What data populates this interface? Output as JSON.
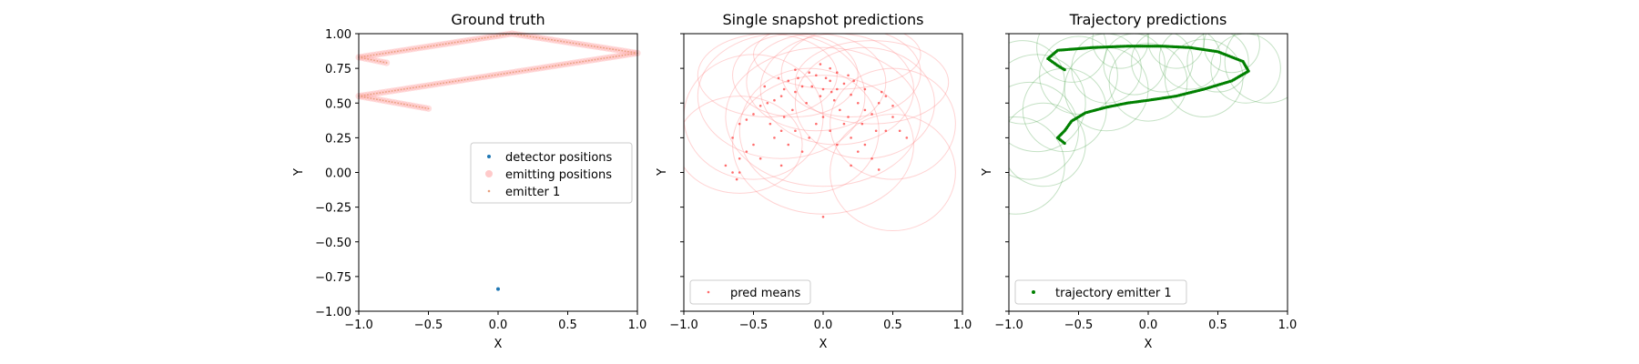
{
  "chart_data": [
    {
      "type": "scatter",
      "title": "Ground truth",
      "xlabel": "X",
      "ylabel": "Y",
      "xlim": [
        -1.0,
        1.0
      ],
      "ylim": [
        -1.0,
        1.0
      ],
      "xticks": [
        "−1.0",
        "−0.5",
        "0.0",
        "0.5",
        "1.0"
      ],
      "yticks": [
        "−1.00",
        "−0.75",
        "−0.50",
        "−0.25",
        "0.00",
        "0.25",
        "0.50",
        "0.75",
        "1.00"
      ],
      "show_ytick_labels": true,
      "grid": false,
      "legend_position": "center-right",
      "legend": [
        {
          "label": "detector positions",
          "color": "#1f77b4",
          "marker": "dot"
        },
        {
          "label": "emitting positions",
          "color": "#ffb3b3",
          "marker": "big-dot"
        },
        {
          "label": "emitter 1",
          "color": "#e8a07e",
          "marker": "small-dot"
        }
      ],
      "series": [
        {
          "name": "detector positions",
          "color": "#1f77b4",
          "points": [
            [
              0.0,
              -0.84
            ]
          ]
        },
        {
          "name": "emitter 1",
          "color": "#e8a07e",
          "polyline": [
            [
              -0.8,
              0.79
            ],
            [
              -1.0,
              0.83
            ],
            [
              0.1,
              1.0
            ],
            [
              1.0,
              0.86
            ],
            [
              -1.0,
              0.55
            ],
            [
              -0.5,
              0.46
            ]
          ],
          "step": 0.022
        }
      ]
    },
    {
      "type": "scatter",
      "title": "Single snapshot predictions",
      "xlabel": "X",
      "ylabel": "Y",
      "xlim": [
        -1.0,
        1.0
      ],
      "ylim": [
        -1.0,
        1.0
      ],
      "xticks": [
        "−1.0",
        "−0.5",
        "0.0",
        "0.5",
        "1.0"
      ],
      "show_ytick_labels": false,
      "grid": false,
      "legend_position": "bottom-left",
      "legend": [
        {
          "label": "pred means",
          "color": "#ff6b6b",
          "marker": "small-dot"
        }
      ],
      "series": [
        {
          "name": "pred means",
          "color": "#ff3b3b",
          "points": [
            [
              -0.05,
              0.7
            ],
            [
              0.02,
              0.68
            ],
            [
              -0.1,
              0.72
            ],
            [
              0.05,
              0.66
            ],
            [
              -0.15,
              0.62
            ],
            [
              0.1,
              0.6
            ],
            [
              -0.2,
              0.58
            ],
            [
              0.15,
              0.64
            ],
            [
              -0.25,
              0.66
            ],
            [
              0.2,
              0.56
            ],
            [
              -0.3,
              0.55
            ],
            [
              0.25,
              0.5
            ],
            [
              -0.35,
              0.52
            ],
            [
              0.3,
              0.45
            ],
            [
              -0.4,
              0.5
            ],
            [
              0.35,
              0.42
            ],
            [
              -0.45,
              0.48
            ],
            [
              0.4,
              0.5
            ],
            [
              -0.5,
              0.42
            ],
            [
              0.45,
              0.55
            ],
            [
              -0.55,
              0.38
            ],
            [
              0.5,
              0.48
            ],
            [
              -0.6,
              0.35
            ],
            [
              0.55,
              0.3
            ],
            [
              -0.65,
              0.25
            ],
            [
              0.6,
              0.25
            ],
            [
              -0.6,
              0.1
            ],
            [
              -0.65,
              0.0
            ],
            [
              -0.62,
              -0.05
            ],
            [
              -0.7,
              0.05
            ],
            [
              0.0,
              0.4
            ],
            [
              -0.05,
              0.35
            ],
            [
              0.05,
              0.3
            ],
            [
              -0.1,
              0.25
            ],
            [
              0.1,
              0.2
            ],
            [
              -0.15,
              0.15
            ],
            [
              0.15,
              0.35
            ],
            [
              -0.2,
              0.3
            ],
            [
              0.2,
              0.25
            ],
            [
              -0.25,
              0.2
            ],
            [
              0.25,
              0.15
            ],
            [
              -0.3,
              0.3
            ],
            [
              0.3,
              0.2
            ],
            [
              -0.35,
              0.25
            ],
            [
              0.35,
              0.1
            ],
            [
              -0.3,
              0.05
            ],
            [
              0.2,
              0.05
            ],
            [
              0.4,
              0.02
            ],
            [
              0.45,
              0.3
            ],
            [
              -0.45,
              0.1
            ],
            [
              -0.5,
              0.2
            ],
            [
              0.5,
              0.4
            ],
            [
              -0.12,
              0.5
            ],
            [
              0.08,
              0.52
            ],
            [
              -0.02,
              0.55
            ],
            [
              0.12,
              0.45
            ],
            [
              -0.22,
              0.45
            ],
            [
              0.18,
              0.4
            ],
            [
              -0.28,
              0.4
            ],
            [
              0.28,
              0.35
            ],
            [
              -0.38,
              0.35
            ],
            [
              0.38,
              0.3
            ],
            [
              -0.08,
              0.62
            ],
            [
              0.0,
              0.6
            ],
            [
              0.06,
              0.58
            ],
            [
              -0.18,
              0.68
            ],
            [
              0.22,
              0.66
            ],
            [
              -0.28,
              0.6
            ],
            [
              0.3,
              0.6
            ],
            [
              -0.42,
              0.62
            ],
            [
              0.42,
              0.58
            ],
            [
              0.0,
              -0.32
            ],
            [
              -0.6,
              0.0
            ],
            [
              -0.55,
              0.15
            ],
            [
              0.05,
              0.75
            ],
            [
              -0.02,
              0.78
            ],
            [
              0.1,
              0.72
            ],
            [
              -0.2,
              0.74
            ],
            [
              0.18,
              0.7
            ],
            [
              -0.32,
              0.68
            ]
          ]
        }
      ],
      "uncertainty_ellipses": [
        {
          "cx": -0.05,
          "cy": 0.65,
          "rx": 0.5,
          "ry": 0.35
        },
        {
          "cx": 0.1,
          "cy": 0.6,
          "rx": 0.55,
          "ry": 0.4
        },
        {
          "cx": -0.3,
          "cy": 0.55,
          "rx": 0.6,
          "ry": 0.45
        },
        {
          "cx": 0.3,
          "cy": 0.5,
          "rx": 0.5,
          "ry": 0.4
        },
        {
          "cx": -0.5,
          "cy": 0.4,
          "rx": 0.5,
          "ry": 0.45
        },
        {
          "cx": 0.5,
          "cy": 0.35,
          "rx": 0.45,
          "ry": 0.4
        },
        {
          "cx": 0.0,
          "cy": 0.4,
          "rx": 0.7,
          "ry": 0.5
        },
        {
          "cx": -0.2,
          "cy": 0.7,
          "rx": 0.45,
          "ry": 0.3
        },
        {
          "cx": 0.2,
          "cy": 0.72,
          "rx": 0.5,
          "ry": 0.32
        },
        {
          "cx": 0.5,
          "cy": 0.0,
          "rx": 0.45,
          "ry": 0.42
        },
        {
          "cx": -0.6,
          "cy": 0.2,
          "rx": 0.45,
          "ry": 0.35
        },
        {
          "cx": 0.0,
          "cy": 0.2,
          "rx": 0.65,
          "ry": 0.5
        },
        {
          "cx": 0.35,
          "cy": 0.65,
          "rx": 0.55,
          "ry": 0.3
        },
        {
          "cx": -0.4,
          "cy": 0.7,
          "rx": 0.5,
          "ry": 0.3
        },
        {
          "cx": 0.1,
          "cy": 0.85,
          "rx": 0.6,
          "ry": 0.25
        },
        {
          "cx": -0.1,
          "cy": 0.3,
          "rx": 0.5,
          "ry": 0.45
        }
      ]
    },
    {
      "type": "line",
      "title": "Trajectory predictions",
      "xlabel": "X",
      "ylabel": "Y",
      "xlim": [
        -1.0,
        1.0
      ],
      "ylim": [
        -1.0,
        1.0
      ],
      "xticks": [
        "−1.0",
        "−0.5",
        "0.0",
        "0.5",
        "1.0"
      ],
      "show_ytick_labels": false,
      "grid": false,
      "legend_position": "bottom-left",
      "legend": [
        {
          "label": "trajectory emitter 1",
          "color": "#008000",
          "marker": "dot"
        }
      ],
      "series": [
        {
          "name": "trajectory emitter 1",
          "color": "#008000",
          "polyline": [
            [
              -0.6,
              0.21
            ],
            [
              -0.65,
              0.25
            ],
            [
              -0.6,
              0.3
            ],
            [
              -0.55,
              0.37
            ],
            [
              -0.45,
              0.43
            ],
            [
              -0.3,
              0.47
            ],
            [
              -0.15,
              0.5
            ],
            [
              0.0,
              0.52
            ],
            [
              0.2,
              0.55
            ],
            [
              0.4,
              0.6
            ],
            [
              0.6,
              0.66
            ],
            [
              0.72,
              0.73
            ],
            [
              0.68,
              0.8
            ],
            [
              0.5,
              0.87
            ],
            [
              0.3,
              0.9
            ],
            [
              0.1,
              0.91
            ],
            [
              -0.15,
              0.91
            ],
            [
              -0.4,
              0.9
            ],
            [
              -0.65,
              0.88
            ],
            [
              -0.72,
              0.82
            ],
            [
              -0.65,
              0.77
            ],
            [
              -0.6,
              0.74
            ]
          ],
          "step": 0.012
        }
      ],
      "uncertainty_circles": [
        {
          "cx": -0.85,
          "cy": 0.3,
          "r": 0.35
        },
        {
          "cx": -0.8,
          "cy": 0.5,
          "r": 0.35
        },
        {
          "cx": -0.75,
          "cy": 0.2,
          "r": 0.3
        },
        {
          "cx": -0.6,
          "cy": 0.45,
          "r": 0.3
        },
        {
          "cx": -0.5,
          "cy": 0.7,
          "r": 0.28
        },
        {
          "cx": -0.3,
          "cy": 0.75,
          "r": 0.25
        },
        {
          "cx": -0.1,
          "cy": 0.78,
          "r": 0.22
        },
        {
          "cx": 0.1,
          "cy": 0.8,
          "r": 0.22
        },
        {
          "cx": 0.3,
          "cy": 0.82,
          "r": 0.22
        },
        {
          "cx": 0.5,
          "cy": 0.8,
          "r": 0.22
        },
        {
          "cx": 0.7,
          "cy": 0.75,
          "r": 0.25
        },
        {
          "cx": 0.85,
          "cy": 0.8,
          "r": 0.3
        },
        {
          "cx": 0.6,
          "cy": 0.92,
          "r": 0.2
        },
        {
          "cx": 0.2,
          "cy": 0.95,
          "r": 0.2
        },
        {
          "cx": -0.2,
          "cy": 0.95,
          "r": 0.2
        },
        {
          "cx": -0.55,
          "cy": 0.9,
          "r": 0.25
        },
        {
          "cx": -0.9,
          "cy": 0.65,
          "r": 0.3
        },
        {
          "cx": -0.3,
          "cy": 0.6,
          "r": 0.3
        },
        {
          "cx": 0.0,
          "cy": 0.65,
          "r": 0.28
        },
        {
          "cx": 0.4,
          "cy": 0.68,
          "r": 0.28
        },
        {
          "cx": -0.95,
          "cy": 0.05,
          "r": 0.35
        }
      ]
    }
  ]
}
